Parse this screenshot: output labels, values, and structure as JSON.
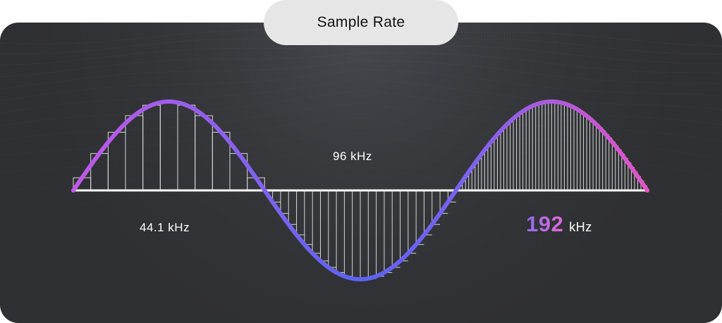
{
  "header": {
    "title": "Sample Rate"
  },
  "labels": {
    "rate_low": "44.1 kHz",
    "rate_mid": "96 kHz",
    "rate_high_value": "192",
    "rate_high_unit": "kHz"
  },
  "colors": {
    "background": "#2f3033",
    "pill": "#e6e6e6",
    "wave_start": "#c158e8",
    "wave_mid": "#5a63f2",
    "wave_end": "#e653c7",
    "sample_lines": "#d8d8d8"
  },
  "chart_data": {
    "type": "line",
    "description_of_series": "one sine period sampled at three rates",
    "segments": [
      {
        "label_key": "rate_low",
        "samples_per_half_cycle": 11,
        "style": "step"
      },
      {
        "label_key": "rate_mid",
        "samples_per_half_cycle": 24,
        "style": "stem"
      },
      {
        "label_key": "rate_high_value",
        "samples_per_half_cycle": 60,
        "style": "stem"
      }
    ]
  }
}
